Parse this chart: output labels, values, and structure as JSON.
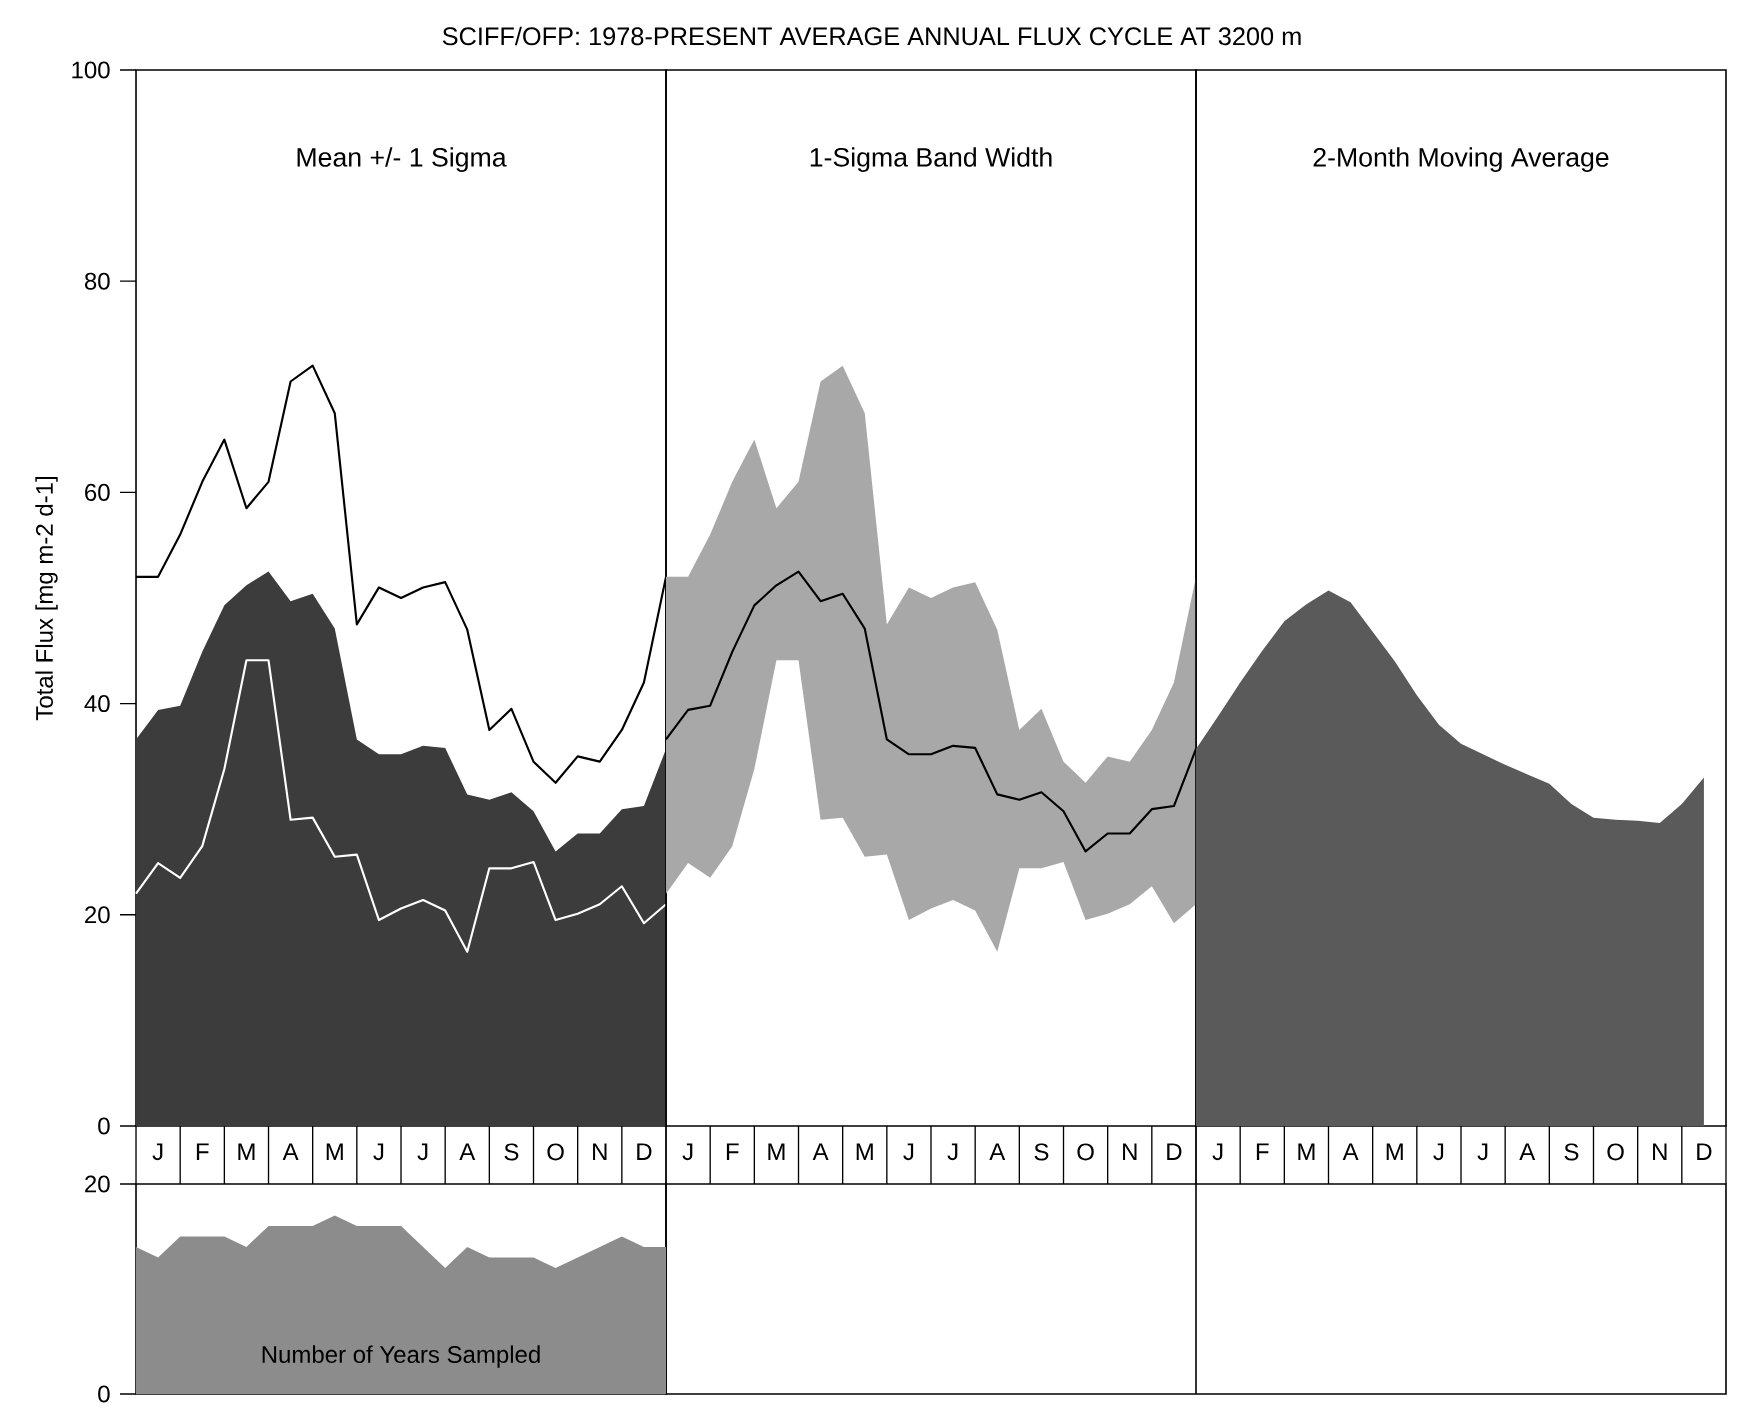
{
  "chart_data": [
    {
      "type": "area",
      "title": "Mean +/- 1 Sigma",
      "ylabel": "Total Flux [mg m-2 d-1]",
      "annotations": [
        "SCIFF/OFP: 1978-PRESENT AVERAGE ANNUAL FLUX CYCLE AT 3200 m"
      ],
      "ylim": [
        0,
        100
      ],
      "yticks": [
        0,
        20,
        40,
        60,
        80,
        100
      ],
      "categories": [
        null,
        "J",
        null,
        "F",
        null,
        "M",
        null,
        "A",
        null,
        "M",
        null,
        "J",
        null,
        "J",
        null,
        "A",
        null,
        "S",
        null,
        "O",
        null,
        "N",
        null,
        "D",
        null
      ],
      "series": [
        {
          "type": "area",
          "color": "#3c3c3c",
          "values": [
            36.6,
            39.4,
            39.8,
            44.9,
            49.3,
            51.2,
            52.5,
            49.7,
            50.4,
            47.1,
            36.6,
            35.2,
            35.2,
            36,
            35.8,
            31.4,
            30.9,
            31.6,
            29.8,
            26,
            27.7,
            27.7,
            30,
            30.3,
            35.7
          ]
        },
        {
          "type": "line",
          "color": "#000000",
          "values": [
            52,
            52,
            56,
            61,
            65,
            58.5,
            61,
            70.5,
            72,
            67.5,
            47.5,
            51,
            50,
            51,
            51.5,
            47,
            37.5,
            39.5,
            34.5,
            32.5,
            35,
            34.5,
            37.5,
            42,
            52
          ]
        },
        {
          "type": "line",
          "color": "#ffffff",
          "values": [
            22,
            24.9,
            23.5,
            26.5,
            33.8,
            44.1,
            44.1,
            29,
            29.2,
            25.5,
            25.7,
            19.5,
            20.6,
            21.4,
            20.4,
            16.5,
            24.4,
            24.4,
            25,
            19.5,
            20.1,
            21,
            22.7,
            19.2,
            21
          ]
        }
      ]
    },
    {
      "type": "line",
      "title": "1-Sigma Band Width",
      "tick_labels": "x",
      "ylim": [
        0,
        100
      ],
      "yticks": [
        0,
        20,
        40,
        60,
        80,
        100
      ],
      "categories": [
        null,
        "J",
        null,
        "F",
        null,
        "M",
        null,
        "A",
        null,
        "M",
        null,
        "J",
        null,
        "J",
        null,
        "A",
        null,
        "S",
        null,
        "O",
        null,
        "N",
        null,
        "D",
        null
      ],
      "series": [
        {
          "type": "line",
          "color": "#000000",
          "values": [
            36.6,
            39.4,
            39.8,
            44.9,
            49.3,
            51.2,
            52.5,
            49.7,
            50.4,
            47.1,
            36.6,
            35.2,
            35.2,
            36,
            35.8,
            31.4,
            30.9,
            31.6,
            29.8,
            26,
            27.7,
            27.7,
            30,
            30.3,
            35.7
          ],
          "lower": [
            22,
            24.9,
            23.5,
            26.5,
            33.8,
            44.1,
            44.1,
            29,
            29.2,
            25.5,
            25.7,
            19.5,
            20.6,
            21.4,
            20.4,
            16.5,
            24.4,
            24.4,
            25,
            19.5,
            20.1,
            21,
            22.7,
            19.2,
            21
          ],
          "upper": [
            52,
            52,
            56,
            61,
            65,
            58.5,
            61,
            70.5,
            72,
            67.5,
            47.5,
            51,
            50,
            51,
            51.5,
            47,
            37.5,
            39.5,
            34.5,
            32.5,
            35,
            34.5,
            37.5,
            42,
            52
          ]
        }
      ]
    },
    {
      "type": "area",
      "title": "2-Month Moving Average",
      "tick_labels": "x",
      "ylim": [
        0,
        100
      ],
      "yticks": [
        0,
        20,
        40,
        60,
        80,
        100
      ],
      "categories": [
        null,
        "J",
        null,
        "F",
        null,
        "M",
        null,
        "A",
        null,
        "M",
        null,
        "J",
        null,
        "J",
        null,
        "A",
        null,
        "S",
        null,
        "O",
        null,
        "N",
        null,
        "D",
        null
      ],
      "color": "#5a5a5a",
      "values": [
        35.7,
        38.8,
        42,
        45,
        47.8,
        49.4,
        50.7,
        49.6,
        46.8,
        44,
        40.8,
        38,
        36.2,
        35.2,
        34.2,
        33.3,
        32.4,
        30.5,
        29.2,
        29,
        28.9,
        28.7,
        30.5,
        33,
        null
      ]
    },
    {
      "type": "area",
      "tick_labels": "y",
      "ylim": [
        0,
        20
      ],
      "yticks": [
        0,
        20
      ],
      "categories": [
        null,
        null,
        null,
        null,
        null,
        null,
        null,
        null,
        null,
        null,
        null,
        null,
        null,
        null,
        null,
        null,
        null,
        null,
        null,
        null,
        null,
        null,
        null,
        null,
        null
      ],
      "series": [
        {
          "name": "Number of Years Sampled",
          "color": "#8c8c8c",
          "values": [
            14,
            13,
            15,
            15,
            15,
            14,
            16,
            16,
            16,
            17,
            16,
            16,
            16,
            14,
            12,
            14,
            13,
            13,
            13,
            12,
            13,
            14,
            15,
            14,
            14
          ]
        }
      ]
    }
  ]
}
